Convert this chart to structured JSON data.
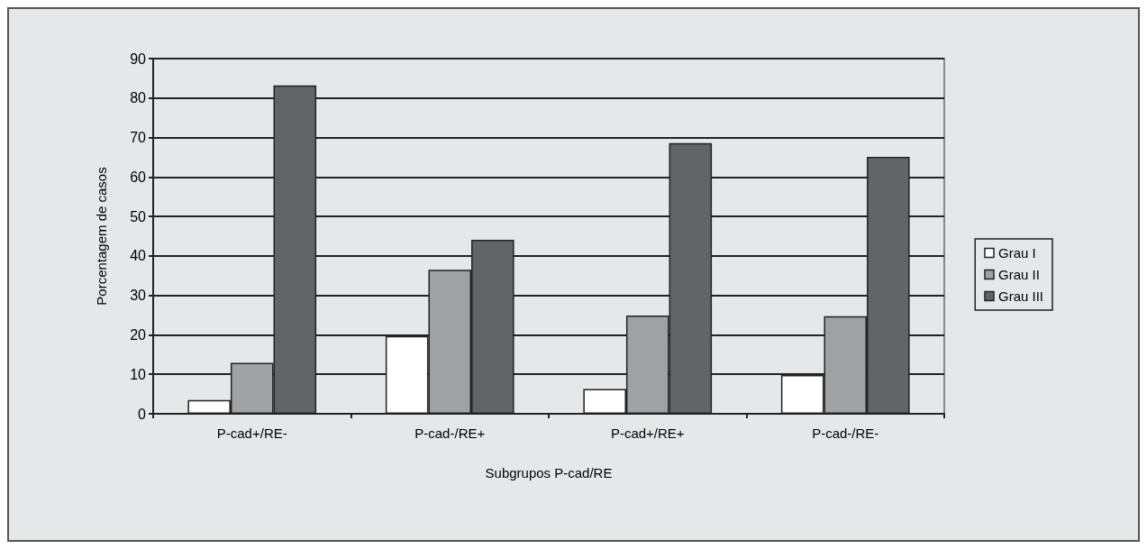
{
  "chart_data": {
    "type": "bar",
    "xlabel": "Subgrupos P-cad/RE",
    "ylabel": "Porcentagem de casos",
    "categories": [
      "P-cad+/RE-",
      "P-cad-/RE+",
      "P-cad+/RE+",
      "P-cad-/RE-"
    ],
    "series": [
      {
        "name": "Grau I",
        "color": "#ffffff",
        "values": [
          3.5,
          19.7,
          6.3,
          9.8
        ]
      },
      {
        "name": "Grau II",
        "color": "#a0a1a3",
        "values": [
          12.9,
          36.5,
          24.9,
          24.7
        ]
      },
      {
        "name": "Grau III",
        "color": "#636466",
        "values": [
          83.2,
          44.1,
          68.6,
          65.1
        ]
      }
    ],
    "ylim": [
      0,
      90
    ],
    "yticks": [
      0,
      10,
      20,
      30,
      40,
      50,
      60,
      70,
      80,
      90
    ],
    "grid": "y",
    "legend": "right"
  }
}
